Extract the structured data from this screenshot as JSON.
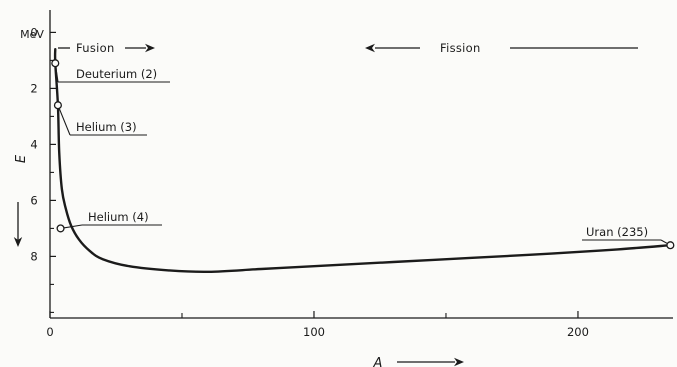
{
  "chart_data": {
    "type": "line",
    "title": "",
    "xlabel": "A",
    "ylabel": "E",
    "yunit": "MeV",
    "xlim": [
      0,
      236
    ],
    "ylim": [
      -0.8,
      10.2
    ],
    "y_inverted": true,
    "grid": false,
    "x_ticks": [
      0,
      100,
      200
    ],
    "y_ticks": [
      0,
      2,
      4,
      6,
      8
    ],
    "series": [
      {
        "values": [
          {
            "x": 2,
            "y": 0.6
          },
          {
            "x": 2,
            "y": 1.1
          },
          {
            "x": 3,
            "y": 2.6
          },
          {
            "x": 3.5,
            "y": 4.3
          },
          {
            "x": 4.5,
            "y": 5.6
          },
          {
            "x": 6,
            "y": 6.3
          },
          {
            "x": 8,
            "y": 6.9
          },
          {
            "x": 11,
            "y": 7.4
          },
          {
            "x": 15,
            "y": 7.8
          },
          {
            "x": 20,
            "y": 8.1
          },
          {
            "x": 30,
            "y": 8.35
          },
          {
            "x": 45,
            "y": 8.5
          },
          {
            "x": 60,
            "y": 8.55
          },
          {
            "x": 80,
            "y": 8.45
          },
          {
            "x": 100,
            "y": 8.35
          },
          {
            "x": 130,
            "y": 8.2
          },
          {
            "x": 160,
            "y": 8.05
          },
          {
            "x": 190,
            "y": 7.9
          },
          {
            "x": 215,
            "y": 7.75
          },
          {
            "x": 235,
            "y": 7.6
          }
        ]
      }
    ],
    "annotations": [
      {
        "label": "Deuterium (2)",
        "x": 2,
        "y": 1.1
      },
      {
        "label": "Helium (3)",
        "x": 3,
        "y": 2.6
      },
      {
        "label": "Helium (4)",
        "x": 4,
        "y": 7.0
      },
      {
        "label": "Uran (235)",
        "x": 235,
        "y": 7.6
      }
    ],
    "process_labels": {
      "fusion": "Fusion",
      "fission": "Fission"
    }
  }
}
